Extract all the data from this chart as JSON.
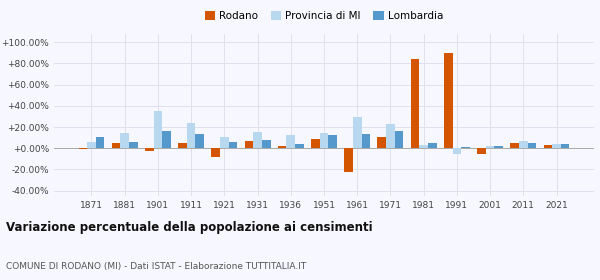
{
  "years": [
    1871,
    1881,
    1901,
    1911,
    1921,
    1931,
    1936,
    1951,
    1961,
    1971,
    1981,
    1991,
    2001,
    2011,
    2021
  ],
  "rodano": [
    -1.0,
    5.0,
    -3.0,
    5.0,
    -8.0,
    7.0,
    2.0,
    9.0,
    -22.0,
    11.0,
    84.0,
    90.0,
    -5.0,
    5.0,
    3.0
  ],
  "provincia_mi": [
    6.0,
    14.0,
    35.0,
    24.0,
    11.0,
    15.0,
    12.0,
    14.0,
    29.0,
    23.0,
    3.0,
    -5.0,
    2.0,
    7.0,
    4.0
  ],
  "lombardia": [
    11.0,
    6.0,
    16.0,
    13.0,
    6.0,
    8.0,
    4.0,
    12.0,
    13.0,
    16.0,
    5.0,
    1.0,
    2.0,
    5.0,
    4.0
  ],
  "rodano_color": "#d45500",
  "provincia_color": "#b8d8f0",
  "lombardia_color": "#5599cc",
  "title": "Variazione percentuale della popolazione ai censimenti",
  "subtitle": "COMUNE DI RODANO (MI) - Dati ISTAT - Elaborazione TUTTITALIA.IT",
  "legend_labels": [
    "Rodano",
    "Provincia di MI",
    "Lombardia"
  ],
  "ylim": [
    -45,
    108
  ],
  "yticks": [
    -40,
    -20,
    0,
    20,
    40,
    60,
    80,
    100
  ],
  "background_color": "#f7f7ff",
  "grid_color": "#e0e0ee"
}
